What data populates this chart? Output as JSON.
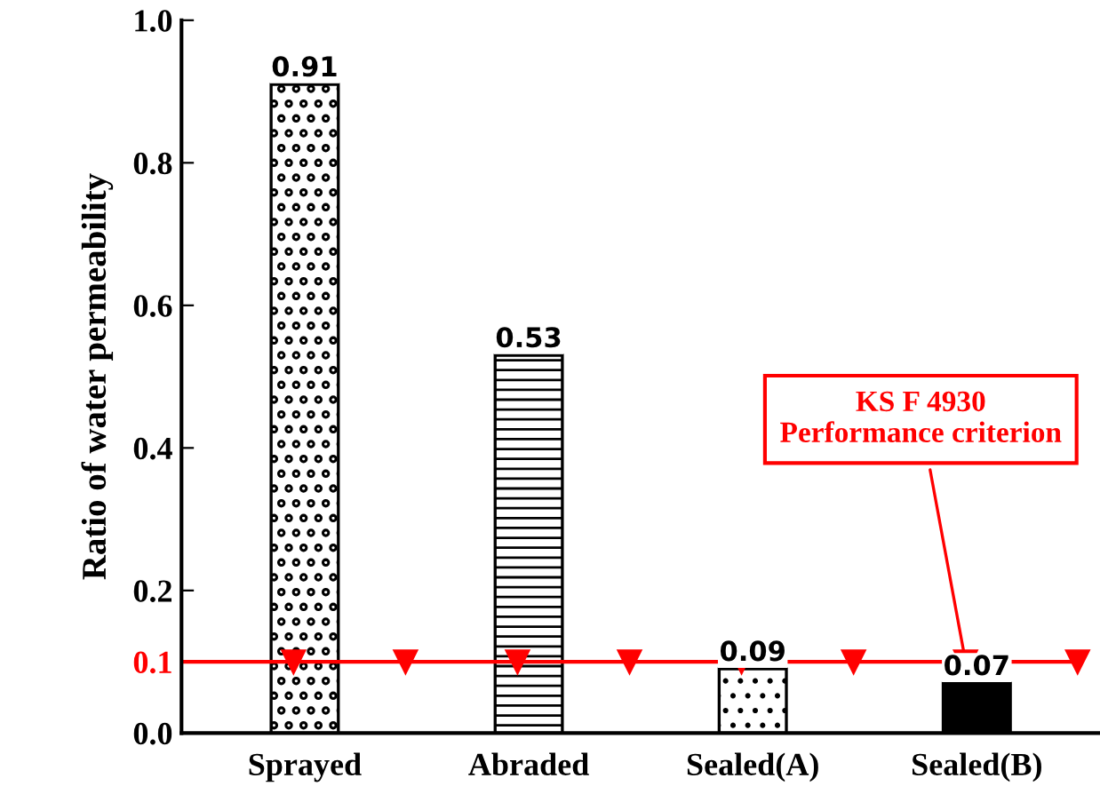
{
  "chart_data": {
    "type": "bar",
    "ylabel": "Ratio of water permeability",
    "categories": [
      "Sprayed",
      "Abraded",
      "Sealed(A)",
      "Sealed(B)"
    ],
    "values": [
      0.91,
      0.53,
      0.09,
      0.07
    ],
    "colors": [
      "#000000",
      "#000000",
      "#000000",
      "#000000"
    ],
    "data_labels": true,
    "ylim": [
      0,
      1.0
    ],
    "yticks": [
      {
        "value": 0.0,
        "label": "0.0"
      },
      {
        "value": 0.1,
        "label": "0.1"
      },
      {
        "value": 0.2,
        "label": "0.2"
      },
      {
        "value": 0.4,
        "label": "0.4"
      },
      {
        "value": 0.6,
        "label": "0.6"
      },
      {
        "value": 0.8,
        "label": "0.8"
      },
      {
        "value": 1.0,
        "label": "1.0"
      }
    ],
    "ref_lines": [
      {
        "axis": "y",
        "value": 0.1,
        "label": "KS F 4930\nPerformance criterion",
        "color": "#ff0000"
      }
    ],
    "grid": false
  }
}
